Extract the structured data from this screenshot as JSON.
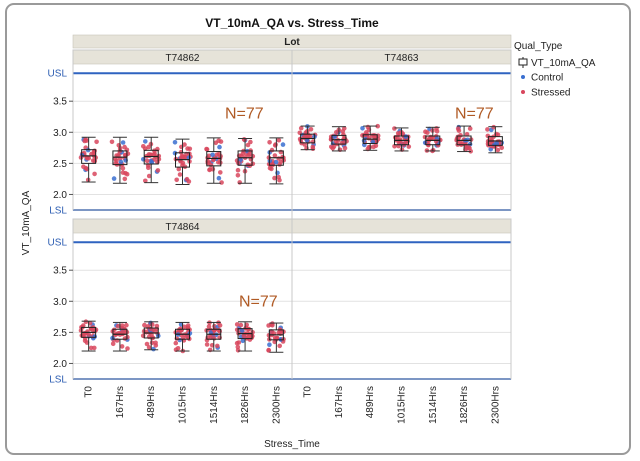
{
  "chart_data": {
    "type": "scatter",
    "title": "VT_10mA_QA vs. Stress_Time",
    "facet_header": "Lot",
    "xlabel": "Stress_Time",
    "ylabel": "VT_10mA_QA",
    "categories": [
      "T0",
      "167Hrs",
      "489Hrs",
      "1015Hrs",
      "1514Hrs",
      "1826Hrs",
      "2300Hrs"
    ],
    "y_ticks": [
      "2.0",
      "2.5",
      "3.0",
      "3.5"
    ],
    "ylim": [
      1.75,
      4.05
    ],
    "reference_lines": [
      {
        "label": "USL",
        "value": 3.95
      },
      {
        "label": "LSL",
        "value": 1.75
      }
    ],
    "legend": {
      "title": "Qual_Type",
      "items": [
        {
          "label": "VT_10mA_QA",
          "marker": "box"
        },
        {
          "label": "Control",
          "color": "#3a6fd0"
        },
        {
          "label": "Stressed",
          "color": "#d8465d"
        }
      ]
    },
    "panels": [
      {
        "lot": "T74862",
        "annotation": "N=77",
        "medians": [
          2.62,
          2.6,
          2.61,
          2.56,
          2.58,
          2.59,
          2.59
        ],
        "q1": [
          2.5,
          2.48,
          2.49,
          2.44,
          2.46,
          2.47,
          2.47
        ],
        "q3": [
          2.72,
          2.7,
          2.71,
          2.67,
          2.69,
          2.7,
          2.7
        ],
        "whisker_low": [
          2.2,
          2.18,
          2.19,
          2.16,
          2.18,
          2.18,
          2.17
        ],
        "whisker_high": [
          2.92,
          2.92,
          2.92,
          2.89,
          2.91,
          2.9,
          2.91
        ]
      },
      {
        "lot": "T74863",
        "annotation": "N=77",
        "medians": [
          2.9,
          2.88,
          2.89,
          2.87,
          2.87,
          2.87,
          2.86
        ],
        "q1": [
          2.83,
          2.81,
          2.82,
          2.8,
          2.8,
          2.8,
          2.79
        ],
        "q3": [
          2.97,
          2.95,
          2.96,
          2.94,
          2.94,
          2.94,
          2.93
        ],
        "whisker_low": [
          2.72,
          2.7,
          2.71,
          2.7,
          2.7,
          2.69,
          2.67
        ],
        "whisker_high": [
          3.1,
          3.09,
          3.1,
          3.07,
          3.08,
          3.1,
          3.09
        ]
      },
      {
        "lot": "T74864",
        "annotation": "N=77",
        "medians": [
          2.5,
          2.47,
          2.49,
          2.47,
          2.47,
          2.48,
          2.46
        ],
        "q1": [
          2.42,
          2.39,
          2.41,
          2.39,
          2.39,
          2.4,
          2.38
        ],
        "q3": [
          2.58,
          2.55,
          2.57,
          2.55,
          2.55,
          2.56,
          2.54
        ],
        "whisker_low": [
          2.2,
          2.2,
          2.22,
          2.2,
          2.2,
          2.2,
          2.18
        ],
        "whisker_high": [
          2.68,
          2.66,
          2.67,
          2.66,
          2.66,
          2.67,
          2.65
        ]
      },
      {
        "lot": "",
        "annotation": "",
        "medians": [],
        "q1": [],
        "q3": [],
        "whisker_low": [],
        "whisker_high": []
      }
    ]
  }
}
